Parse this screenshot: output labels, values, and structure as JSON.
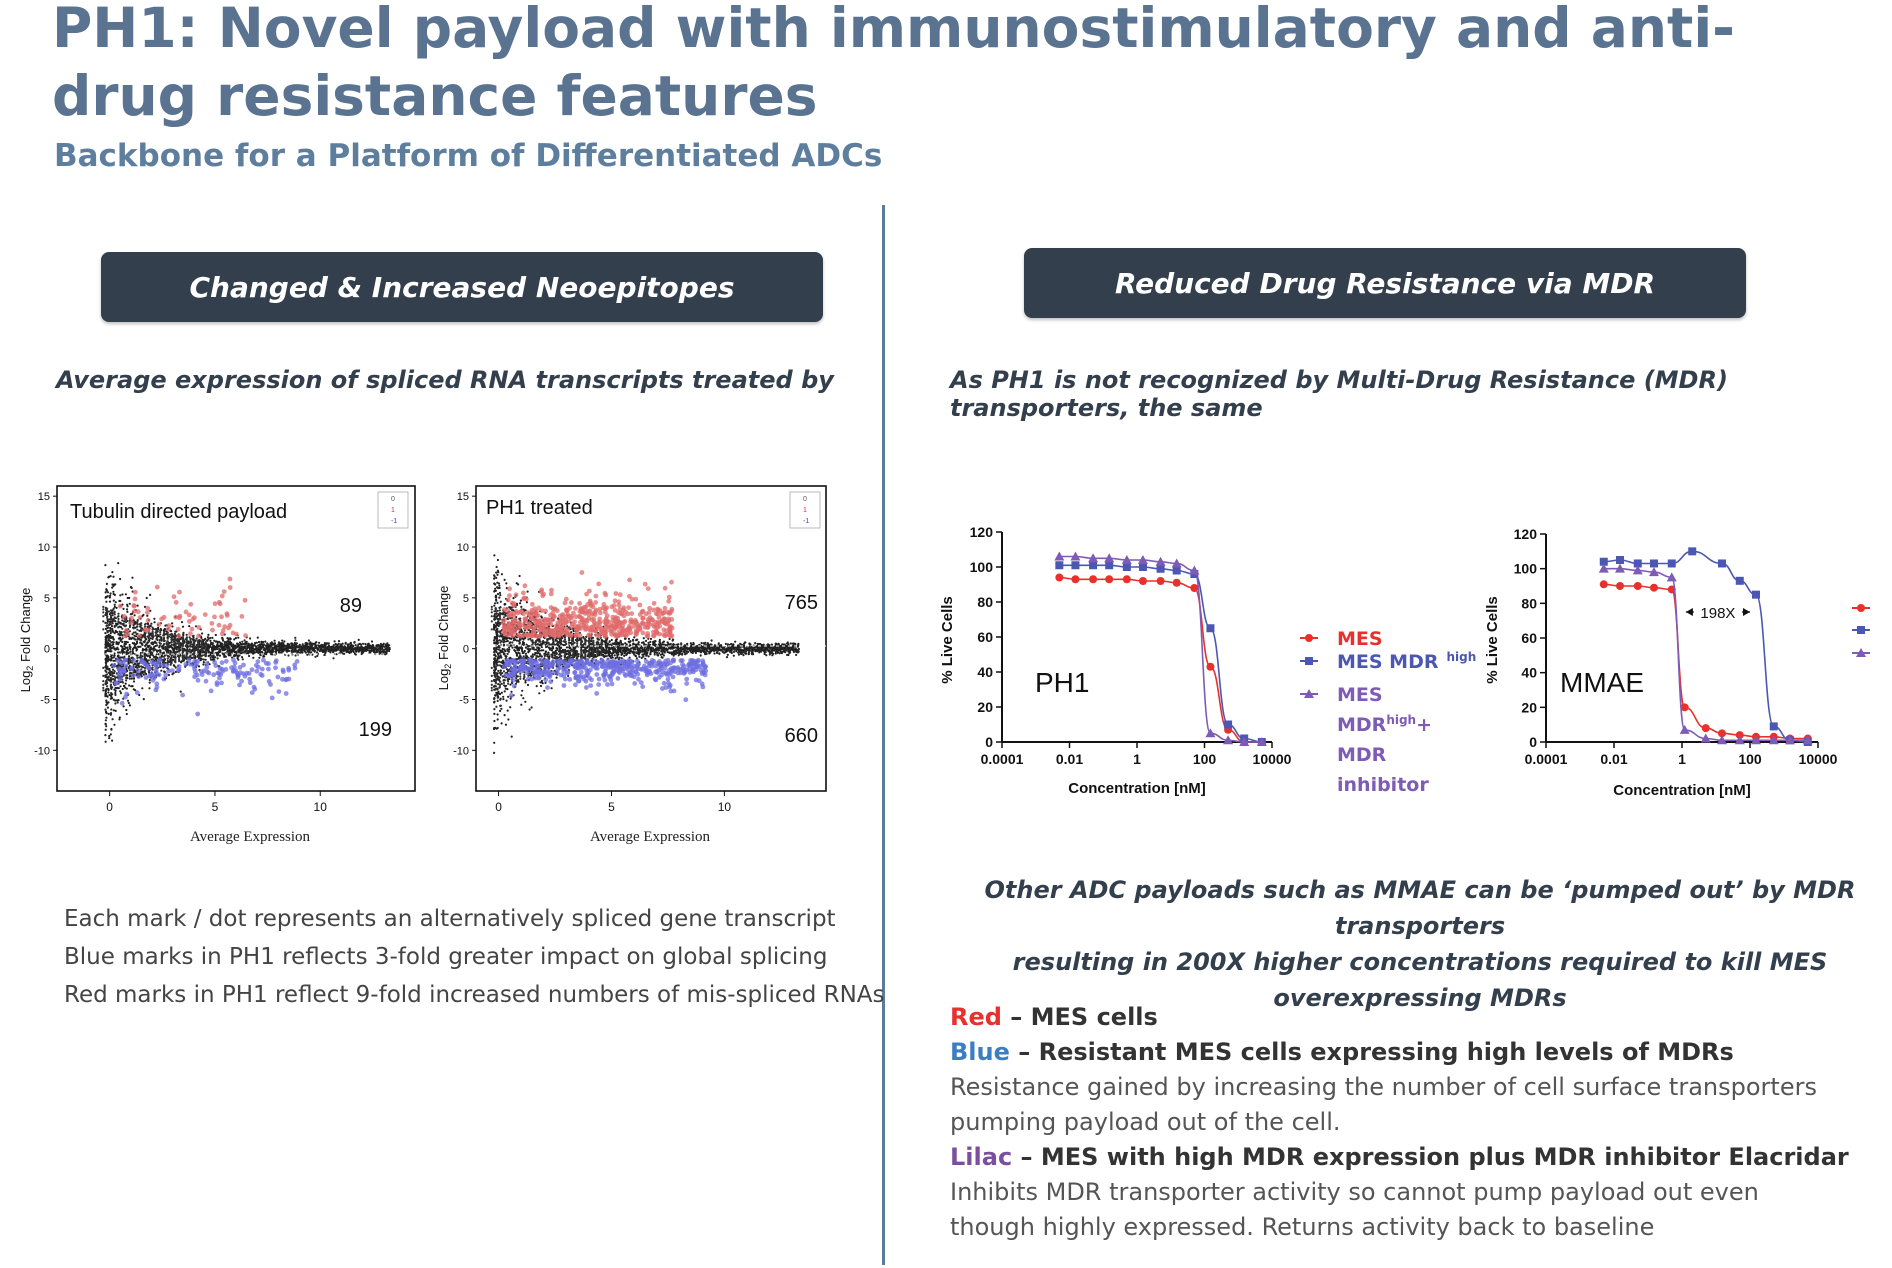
{
  "title": "PH1: Novel payload with immunostimulatory and anti-drug resistance features",
  "subtitle": "Backbone for a Platform of Differentiated ADCs",
  "left_panel": {
    "header": "Changed & Increased Neoepitopes",
    "intro": "Average expression of spliced RNA transcripts treated by",
    "notes": [
      "Each mark / dot represents an alternatively spliced gene transcript",
      "Blue marks in PH1 reflects 3-fold greater impact on global splicing",
      "Red marks in PH1 reflect 9-fold increased numbers of mis-spliced RNAs"
    ]
  },
  "right_panel": {
    "header": "Reduced Drug Resistance via MDR",
    "intro": "As PH1 is not recognized by Multi-Drug Resistance (MDR) transporters, the same",
    "mid_text": [
      "Other ADC payloads such as MMAE can be ‘pumped out’ by MDR transporters",
      "resulting in 200X higher concentrations required to kill MES overexpressing MDRs"
    ],
    "legend": {
      "red_word": "Red",
      "red_text": " – MES cells",
      "blue_word": "Blue",
      "blue_text": " – Resistant MES cells expressing high levels of MDRs",
      "blue_desc": "Resistance gained by increasing the number of cell surface transporters pumping payload out of the cell.",
      "lilac_word": "Lilac",
      "lilac_text": " – MES with high MDR expression plus MDR inhibitor Elacridar",
      "lilac_desc": "Inhibits MDR transporter activity so cannot pump payload out even though highly expressed. Returns activity back to baseline"
    },
    "colors": {
      "red": "#e8302c",
      "blue": "#4b57b3",
      "lilac": "#7e5bb5"
    }
  },
  "chart_data": [
    {
      "type": "scatter",
      "title": "Tubulin directed payload",
      "xlabel": "Average Expression",
      "ylabel": "Log2 Fold Change",
      "xlim": [
        -2.5,
        14.5
      ],
      "ylim": [
        -14,
        16
      ],
      "x_ticks": [
        "0",
        "5",
        "10"
      ],
      "y_ticks": [
        "15",
        "10",
        "5",
        "0",
        "-5",
        "-10"
      ],
      "legend": [
        "0",
        "1",
        "-1"
      ],
      "up_count": "89",
      "down_count": "199"
    },
    {
      "type": "scatter",
      "title": "PH1 treated",
      "xlabel": "Average Expression",
      "ylabel": "Log2 Fold Change",
      "xlim": [
        -1,
        14.5
      ],
      "ylim": [
        -14,
        16
      ],
      "x_ticks": [
        "0",
        "5",
        "10"
      ],
      "y_ticks": [
        "15",
        "10",
        "5",
        "0",
        "-5",
        "-10"
      ],
      "legend": [
        "0",
        "1",
        "-1"
      ],
      "up_count": "765",
      "down_count": "660"
    },
    {
      "type": "line",
      "title": "PH1",
      "xlabel": "Concentration [nM]",
      "ylabel": "% Live Cells",
      "x_ticks": [
        "0.0001",
        "0.01",
        "1",
        "100",
        "10000"
      ],
      "y_ticks": [
        "0",
        "20",
        "40",
        "60",
        "80",
        "100",
        "120"
      ],
      "ylim": [
        0,
        120
      ],
      "x_log10": [
        -4,
        4
      ],
      "series": [
        {
          "name": "MES",
          "marker": "circle",
          "color": "#e8302c",
          "x": [
            0.005,
            0.015,
            0.05,
            0.15,
            0.5,
            1.5,
            5,
            15,
            50,
            150,
            500,
            1500,
            5000
          ],
          "y": [
            94,
            93,
            93,
            93,
            93,
            92,
            92,
            91,
            88,
            43,
            7,
            0,
            0
          ]
        },
        {
          "name": "MES MDR high",
          "marker": "square",
          "color": "#4b57b3",
          "x": [
            0.005,
            0.015,
            0.05,
            0.15,
            0.5,
            1.5,
            5,
            15,
            50,
            150,
            500,
            1500,
            5000
          ],
          "y": [
            101,
            101,
            101,
            101,
            100,
            100,
            99,
            98,
            96,
            65,
            10,
            2,
            0
          ]
        },
        {
          "name": "MES MDRhigh+ MDR inhibitor",
          "marker": "triangle",
          "color": "#7e5bb5",
          "x": [
            0.005,
            0.015,
            0.05,
            0.15,
            0.5,
            1.5,
            5,
            15,
            50,
            150,
            500,
            1500,
            5000
          ],
          "y": [
            106,
            106,
            105,
            105,
            104,
            104,
            103,
            102,
            98,
            5,
            1,
            0,
            0
          ]
        }
      ],
      "legend_labels": {
        "mes": "MES",
        "mdr": "MES MDR",
        "mdr_sup": "high",
        "lilac_1": "MES",
        "lilac_2": "MDR",
        "lilac_2_sup": "high",
        "lilac_2_tail": "+",
        "lilac_3": "MDR",
        "lilac_4": "inhibitor"
      }
    },
    {
      "type": "line",
      "title": "MMAE",
      "xlabel": "Concentration [nM]",
      "ylabel": "% Live Cells",
      "x_ticks": [
        "0.0001",
        "0.01",
        "1",
        "100",
        "10000"
      ],
      "y_ticks": [
        "0",
        "20",
        "40",
        "60",
        "80",
        "100",
        "120"
      ],
      "ylim": [
        0,
        120
      ],
      "x_log10": [
        -4,
        4
      ],
      "annotation": "198X",
      "series": [
        {
          "name": "MES",
          "marker": "circle",
          "color": "#e8302c",
          "x": [
            0.005,
            0.015,
            0.05,
            0.15,
            0.5,
            1.2,
            5,
            15,
            50,
            150,
            500,
            1500,
            5000
          ],
          "y": [
            91,
            90,
            90,
            89,
            88,
            20,
            8,
            5,
            4,
            3,
            3,
            2,
            2
          ]
        },
        {
          "name": "MES MDR high",
          "marker": "square",
          "color": "#4b57b3",
          "x": [
            0.005,
            0.015,
            0.05,
            0.15,
            0.5,
            2,
            15,
            50,
            150,
            500,
            1500,
            5000
          ],
          "y": [
            104,
            105,
            103,
            103,
            103,
            110,
            103,
            93,
            85,
            9,
            1,
            0
          ]
        },
        {
          "name": "MES MDRhigh+ MDR inhibitor",
          "marker": "triangle",
          "color": "#7e5bb5",
          "x": [
            0.005,
            0.015,
            0.05,
            0.15,
            0.5,
            1.2,
            5,
            15,
            50,
            150,
            500,
            1500,
            5000
          ],
          "y": [
            100,
            100,
            99,
            98,
            95,
            7,
            2,
            1,
            1,
            1,
            1,
            1,
            1
          ]
        }
      ]
    }
  ]
}
